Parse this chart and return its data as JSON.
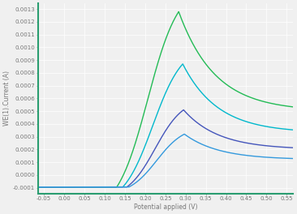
{
  "title": "",
  "xlabel": "Potential applied (V)",
  "ylabel": "WE(1).Current (A)",
  "xlim": [
    -0.065,
    0.565
  ],
  "ylim": [
    -0.000145,
    0.001345
  ],
  "xticks": [
    -0.05,
    0.0,
    0.05,
    0.1,
    0.15,
    0.2,
    0.25,
    0.3,
    0.35,
    0.4,
    0.45,
    0.5,
    0.55
  ],
  "yticks": [
    -0.0001,
    0.0,
    0.0001,
    0.0002,
    0.0003,
    0.0004,
    0.0005,
    0.0006,
    0.0007,
    0.0008,
    0.0009,
    0.001,
    0.0011,
    0.0012,
    0.0013
  ],
  "background_color": "#f0f0f0",
  "grid_color": "#ffffff",
  "curves": [
    {
      "color": "#22bb55",
      "peak_x": 0.283,
      "peak_y": 0.00128,
      "baseline": -9.5e-05,
      "tail_y": 0.0005,
      "rise_start": 0.13,
      "rise_sharpness": 4.0,
      "decay_rate": 3.2
    },
    {
      "color": "#00b8cc",
      "peak_x": 0.293,
      "peak_y": 0.00087,
      "baseline": -9.5e-05,
      "tail_y": 0.00033,
      "rise_start": 0.145,
      "rise_sharpness": 4.0,
      "decay_rate": 3.2
    },
    {
      "color": "#4455bb",
      "peak_x": 0.295,
      "peak_y": 0.00051,
      "baseline": -9.5e-05,
      "tail_y": 0.0002,
      "rise_start": 0.155,
      "rise_sharpness": 4.0,
      "decay_rate": 3.2
    },
    {
      "color": "#3399dd",
      "peak_x": 0.297,
      "peak_y": 0.00032,
      "baseline": -9.5e-05,
      "tail_y": 0.00012,
      "rise_start": 0.16,
      "rise_sharpness": 4.0,
      "decay_rate": 3.2
    }
  ],
  "spine_color": "#2a9d70",
  "tick_color": "#777777",
  "label_fontsize": 5.5,
  "tick_fontsize": 5.0,
  "linewidth": 1.0
}
